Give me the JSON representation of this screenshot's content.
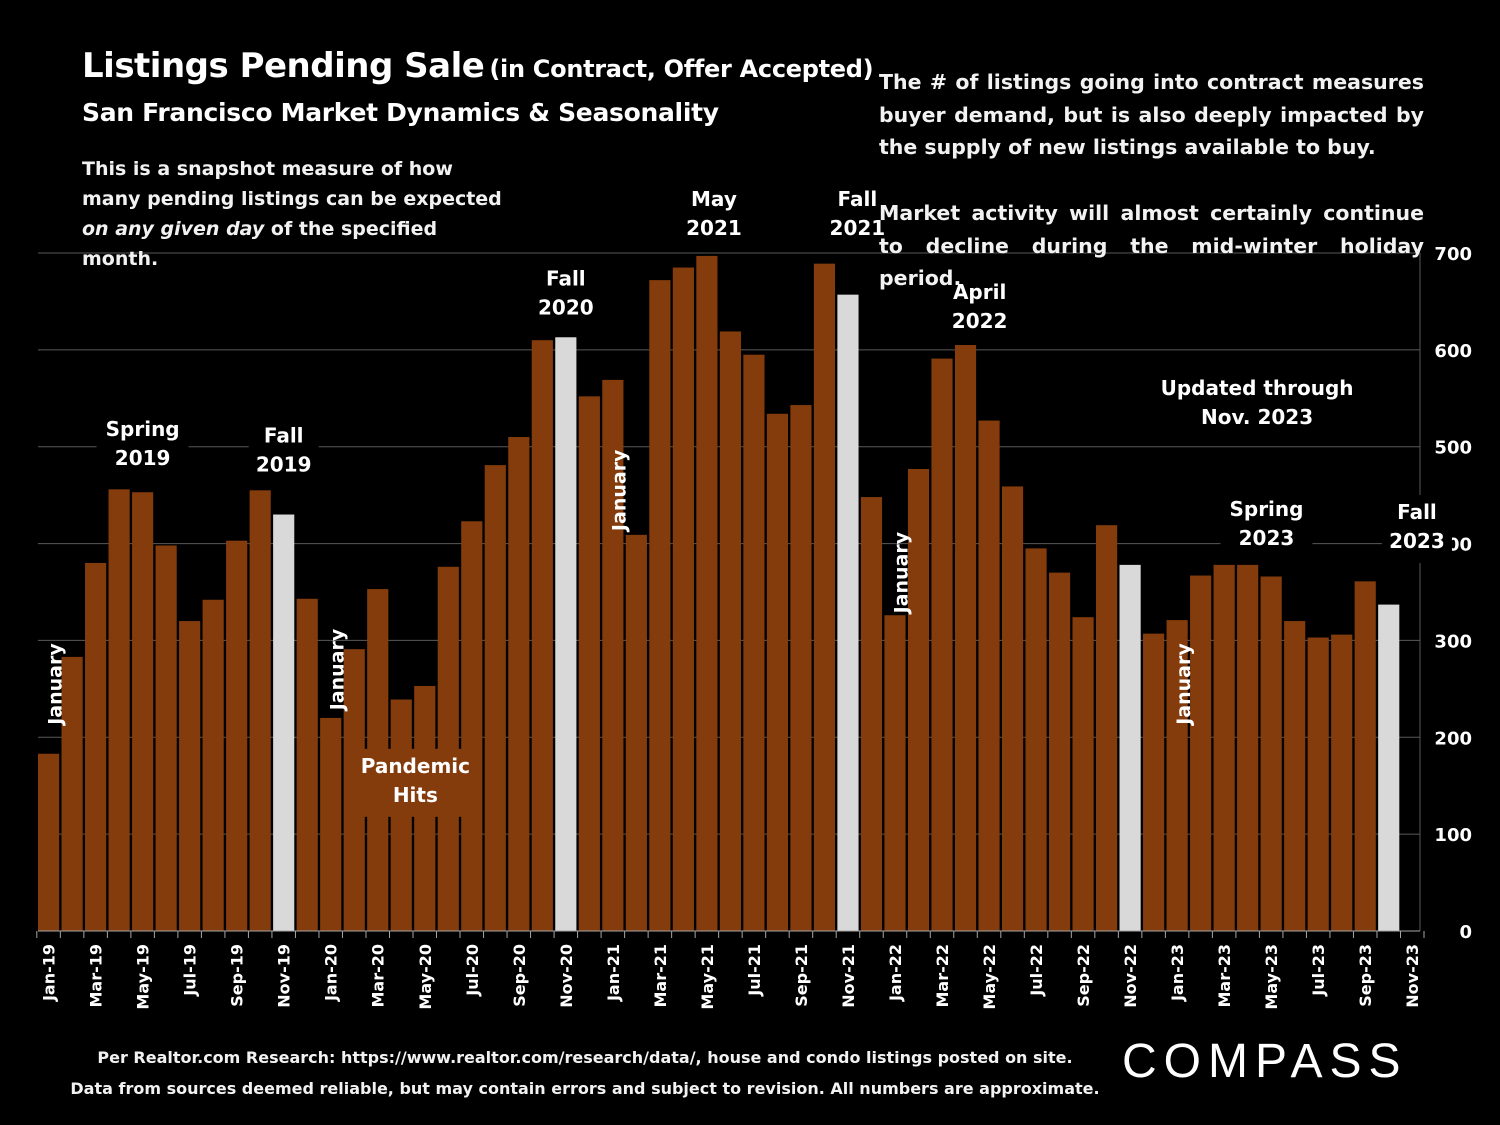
{
  "header": {
    "title": "Listings Pending Sale",
    "title_paren": "(in Contract, Offer Accepted)",
    "subtitle": "San Francisco Market Dynamics & Seasonality",
    "snapshot_a": "This is a snapshot measure of how many pending listings can be expected ",
    "snapshot_em": "on any given day",
    "snapshot_b": " of the specified month.",
    "note1": "The # of listings going into contract measures buyer demand, but is also deeply impacted by the supply of new listings available to buy.",
    "note2": "Market activity will almost certainly continue to decline during the mid-winter holiday period."
  },
  "footer": {
    "line1": "Per Realtor.com Research:  https://www.realtor.com/research/data/, house and condo listings posted on site.",
    "line2": "Data from sources deemed reliable, but may contain errors and subject to revision. All numbers are approximate.",
    "logo": "COMPASS"
  },
  "colors": {
    "bar": "#843c0c",
    "highlight": "#d9d9d9",
    "grid": "#595959",
    "background": "#000000",
    "text": "#ffffff"
  },
  "chart_data": {
    "type": "bar",
    "ylim": [
      0,
      700
    ],
    "yticks": [
      0,
      100,
      200,
      300,
      400,
      500,
      600,
      700
    ],
    "grid": true,
    "y_axis_side": "right",
    "categories": [
      "Jan-19",
      "Feb-19",
      "Mar-19",
      "Apr-19",
      "May-19",
      "Jun-19",
      "Jul-19",
      "Aug-19",
      "Sep-19",
      "Oct-19",
      "Nov-19",
      "Dec-19",
      "Jan-20",
      "Feb-20",
      "Mar-20",
      "Apr-20",
      "May-20",
      "Jun-20",
      "Jul-20",
      "Aug-20",
      "Sep-20",
      "Oct-20",
      "Nov-20",
      "Dec-20",
      "Jan-21",
      "Feb-21",
      "Mar-21",
      "Apr-21",
      "May-21",
      "Jun-21",
      "Jul-21",
      "Aug-21",
      "Sep-21",
      "Oct-21",
      "Nov-21",
      "Dec-21",
      "Jan-22",
      "Feb-22",
      "Mar-22",
      "Apr-22",
      "May-22",
      "Jun-22",
      "Jul-22",
      "Aug-22",
      "Sep-22",
      "Oct-22",
      "Nov-22",
      "Dec-22",
      "Jan-23",
      "Feb-23",
      "Mar-23",
      "Apr-23",
      "May-23",
      "Jun-23",
      "Jul-23",
      "Aug-23",
      "Sep-23",
      "Oct-23",
      "Nov-23"
    ],
    "xtick_labels": [
      "Jan-19",
      "",
      "Mar-19",
      "",
      "May-19",
      "",
      "Jul-19",
      "",
      "Sep-19",
      "",
      "Nov-19",
      "",
      "Jan-20",
      "",
      "Mar-20",
      "",
      "May-20",
      "",
      "Jul-20",
      "",
      "Sep-20",
      "",
      "Nov-20",
      "",
      "Jan-21",
      "",
      "Mar-21",
      "",
      "May-21",
      "",
      "Jul-21",
      "",
      "Sep-21",
      "",
      "Nov-21",
      "",
      "Jan-22",
      "",
      "Mar-22",
      "",
      "May-22",
      "",
      "Jul-22",
      "",
      "Sep-22",
      "",
      "Nov-22",
      "",
      "Jan-23",
      "",
      "Mar-23",
      "",
      "May-23",
      "",
      "Jul-23",
      "",
      "Sep-23",
      "",
      "Nov-23"
    ],
    "values": [
      183,
      283,
      380,
      456,
      453,
      398,
      320,
      342,
      403,
      455,
      430,
      343,
      220,
      291,
      353,
      239,
      253,
      376,
      423,
      481,
      510,
      610,
      613,
      552,
      569,
      409,
      672,
      685,
      697,
      619,
      595,
      534,
      543,
      689,
      657,
      448,
      326,
      477,
      591,
      605,
      527,
      459,
      395,
      370,
      324,
      419,
      378,
      307,
      321,
      367,
      378,
      378,
      366,
      320,
      303,
      306,
      361,
      337,
      0
    ],
    "highlight": [
      false,
      false,
      false,
      false,
      false,
      false,
      false,
      false,
      false,
      false,
      true,
      false,
      false,
      false,
      false,
      false,
      false,
      false,
      false,
      false,
      false,
      false,
      true,
      false,
      false,
      false,
      false,
      false,
      false,
      false,
      false,
      false,
      false,
      false,
      true,
      false,
      false,
      false,
      false,
      false,
      false,
      false,
      false,
      false,
      false,
      false,
      true,
      false,
      false,
      false,
      false,
      false,
      false,
      false,
      false,
      false,
      false,
      true,
      false
    ],
    "annotations": [
      {
        "text": "Spring\n2019",
        "index": 4,
        "value": 470
      },
      {
        "text": "Fall\n2019",
        "index": 10,
        "value": 463
      },
      {
        "text": "Fall\n2020",
        "index": 22,
        "value": 625
      },
      {
        "text": "May\n2021",
        "index": 28.3,
        "value": 707
      },
      {
        "text": "Fall\n2021",
        "index": 34.4,
        "value": 707
      },
      {
        "text": "April\n2022",
        "index": 39.6,
        "value": 611
      },
      {
        "text": "Updated through\nNov. 2023",
        "index": 51.4,
        "value": 512
      },
      {
        "text": "Spring\n2023",
        "index": 51.8,
        "value": 387
      },
      {
        "text": "Fall\n2023",
        "index": 58.2,
        "value": 384
      },
      {
        "text": "Pandemic\nHits",
        "index": 15.6,
        "value": 122,
        "boxed": true
      }
    ],
    "january_labels": [
      {
        "text": "January",
        "index": 0.2,
        "value": 255
      },
      {
        "text": "January",
        "index": 12.2,
        "value": 270
      },
      {
        "text": "January",
        "index": 24.2,
        "value": 455
      },
      {
        "text": "January",
        "index": 36.2,
        "value": 370
      },
      {
        "text": "January",
        "index": 48.2,
        "value": 255
      }
    ]
  }
}
